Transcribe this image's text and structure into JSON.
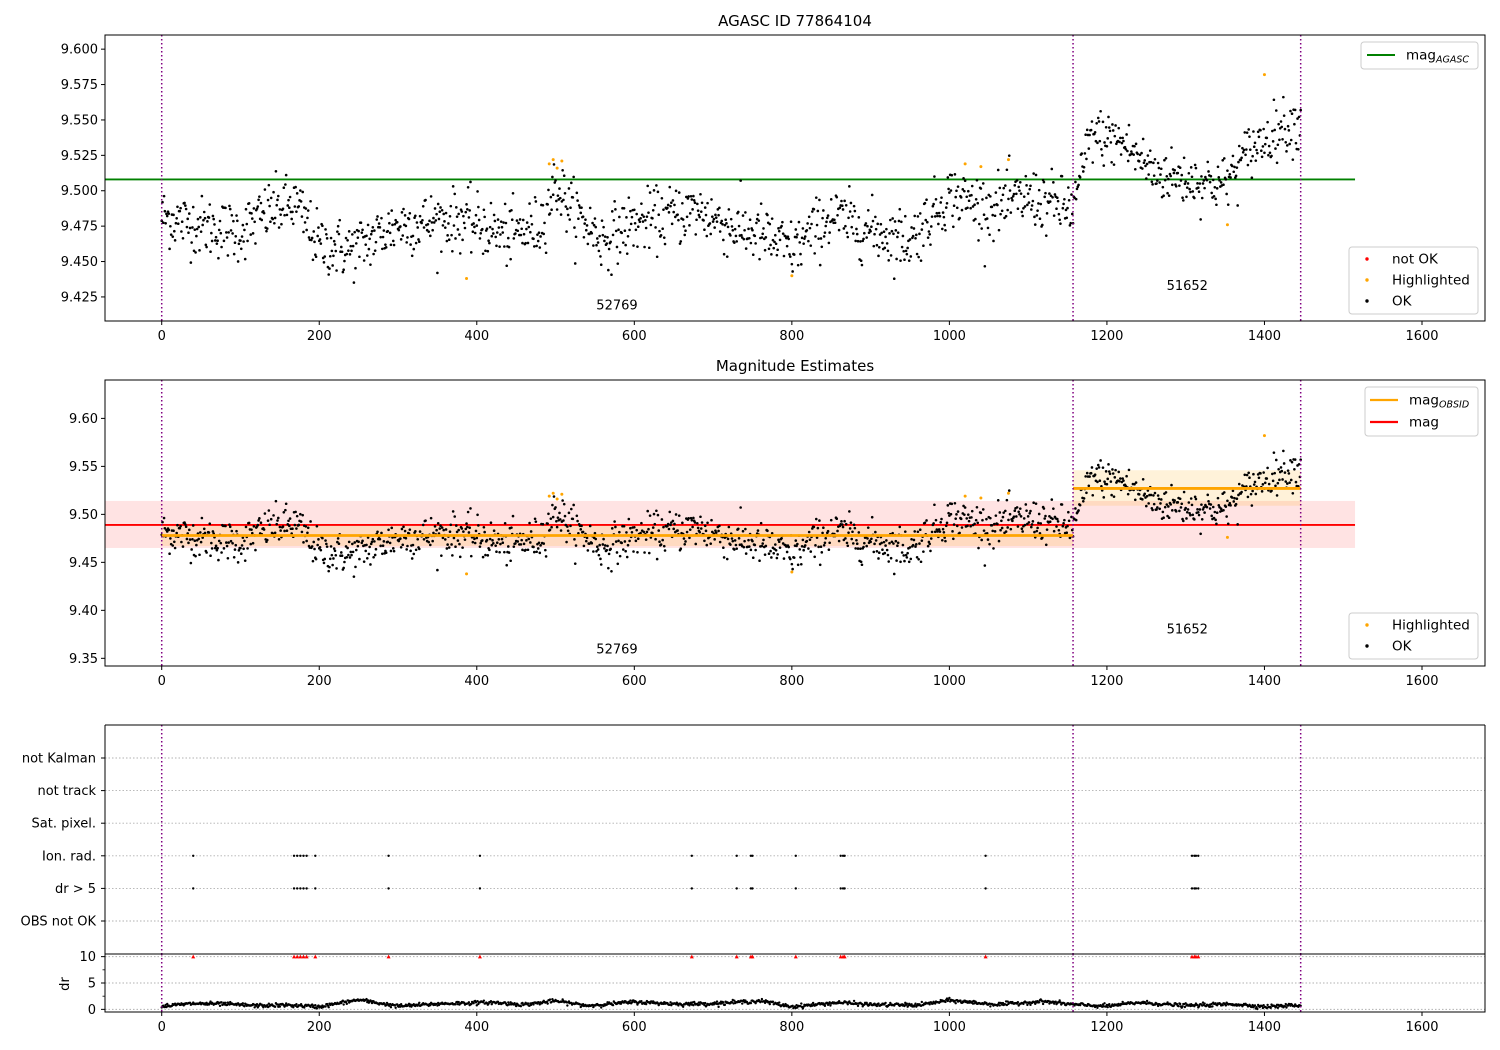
{
  "chart_data": [
    {
      "type": "scatter",
      "title": "AGASC ID 77864104",
      "xlabel": "",
      "ylabel": "",
      "xlim": [
        -72,
        1680
      ],
      "ylim": [
        9.408,
        9.61
      ],
      "xticks": [
        0,
        200,
        400,
        600,
        800,
        1000,
        1200,
        1400,
        1600
      ],
      "xtick_labels": [
        "0",
        "200",
        "400",
        "600",
        "800",
        "1000",
        "1200",
        "1400",
        "1600"
      ],
      "yticks": [
        9.425,
        9.45,
        9.475,
        9.5,
        9.525,
        9.55,
        9.575,
        9.6
      ],
      "ytick_labels": [
        "9.425",
        "9.450",
        "9.475",
        "9.500",
        "9.525",
        "9.550",
        "9.575",
        "9.600"
      ],
      "vlines": [
        0,
        1157,
        1446
      ],
      "obsid_labels": [
        {
          "x": 578,
          "y": 9.416,
          "text": "52769"
        },
        {
          "x": 1302,
          "y": 9.43,
          "text": "51652"
        }
      ],
      "reference_line": {
        "name": "mag",
        "subscript": "AGASC",
        "value": 9.508,
        "x": [
          -72,
          1515
        ],
        "color": "#008000"
      },
      "legend_upper": {
        "position": "upper right",
        "entries": [
          {
            "name": "mag",
            "subscript": "AGASC",
            "kind": "line",
            "color": "#008000"
          }
        ]
      },
      "legend_lower": {
        "position": "lower right",
        "entries": [
          {
            "name": "not OK",
            "kind": "marker",
            "color": "#ff0000"
          },
          {
            "name": "Highlighted",
            "kind": "marker",
            "color": "#ffa500"
          },
          {
            "name": "OK",
            "kind": "marker",
            "color": "#000000"
          }
        ]
      },
      "segments": [
        {
          "x": [
            0,
            1157
          ],
          "mean": 9.478,
          "std": 0.013,
          "color": "#000000"
        },
        {
          "x": [
            1157,
            1446
          ],
          "mean": 9.528,
          "std": 0.016,
          "color": "#000000"
        }
      ],
      "trend": {
        "x": [
          0,
          50,
          100,
          140,
          170,
          200,
          240,
          300,
          380,
          440,
          480,
          500,
          520,
          560,
          600,
          680,
          720,
          760,
          800,
          850,
          900,
          950,
          970,
          1000,
          1050,
          1100,
          1157,
          1180,
          1220,
          1260,
          1300,
          1350,
          1380,
          1420,
          1446
        ],
        "y": [
          9.482,
          9.475,
          9.471,
          9.487,
          9.49,
          9.462,
          9.458,
          9.476,
          9.48,
          9.468,
          9.475,
          9.504,
          9.487,
          9.465,
          9.477,
          9.486,
          9.475,
          9.469,
          9.458,
          9.482,
          9.472,
          9.465,
          9.478,
          9.497,
          9.488,
          9.495,
          9.487,
          9.54,
          9.534,
          9.513,
          9.508,
          9.505,
          9.528,
          9.545,
          9.548
        ]
      },
      "highlighted_points": {
        "x": [
          387,
          492,
          497,
          502,
          508,
          800,
          1020,
          1040,
          1075,
          1353,
          1400
        ],
        "y": [
          9.438,
          9.519,
          9.522,
          9.516,
          9.521,
          9.44,
          9.519,
          9.517,
          9.522,
          9.476,
          9.582
        ]
      }
    },
    {
      "type": "scatter",
      "title": "Magnitude Estimates",
      "xlabel": "",
      "ylabel": "",
      "xlim": [
        -72,
        1680
      ],
      "ylim": [
        9.342,
        9.64
      ],
      "xticks": [
        0,
        200,
        400,
        600,
        800,
        1000,
        1200,
        1400,
        1600
      ],
      "xtick_labels": [
        "0",
        "200",
        "400",
        "600",
        "800",
        "1000",
        "1200",
        "1400",
        "1600"
      ],
      "yticks": [
        9.35,
        9.4,
        9.45,
        9.5,
        9.55,
        9.6
      ],
      "ytick_labels": [
        "9.35",
        "9.40",
        "9.45",
        "9.50",
        "9.55",
        "9.60"
      ],
      "vlines": [
        0,
        1157,
        1446
      ],
      "obsid_labels": [
        {
          "x": 578,
          "y": 9.355,
          "text": "52769"
        },
        {
          "x": 1302,
          "y": 9.376,
          "text": "51652"
        }
      ],
      "mag_line": {
        "name": "mag",
        "value": 9.489,
        "band": [
          9.465,
          9.514
        ],
        "x": [
          -72,
          1515
        ],
        "color": "#ff0000"
      },
      "obsid_lines": [
        {
          "x": [
            0,
            1157
          ],
          "value": 9.478,
          "band": [
            9.467,
            9.489
          ]
        },
        {
          "x": [
            1157,
            1446
          ],
          "value": 9.527,
          "band": [
            9.509,
            9.546
          ]
        }
      ],
      "legend_upper": {
        "position": "upper right",
        "entries": [
          {
            "name": "mag",
            "subscript": "OBSID",
            "kind": "line",
            "color": "#ffa500"
          },
          {
            "name": "mag",
            "kind": "line",
            "color": "#ff0000"
          }
        ]
      },
      "legend_lower": {
        "position": "lower right",
        "entries": [
          {
            "name": "Highlighted",
            "kind": "marker",
            "color": "#ffa500"
          },
          {
            "name": "OK",
            "kind": "marker",
            "color": "#000000"
          }
        ]
      }
    },
    {
      "type": "scatter",
      "title": "",
      "xlabel": "",
      "ylabel": "",
      "xlim": [
        -72,
        1680
      ],
      "categories": [
        "OBS not OK",
        "dr > 5",
        "Ion. rad.",
        "Sat. pixel.",
        "not track",
        "not Kalman"
      ],
      "vlines": [
        0,
        1157,
        1446
      ],
      "flag_x": [
        40,
        168,
        172,
        176,
        180,
        184,
        195,
        288,
        404,
        673,
        730,
        748,
        750,
        805,
        862,
        865,
        867,
        1046,
        1308,
        1311,
        1313,
        1316
      ],
      "flags": {
        "dr > 5": true,
        "Ion. rad.": true
      }
    },
    {
      "type": "scatter",
      "title": "",
      "xlabel": "",
      "ylabel": "dr",
      "xlim": [
        -72,
        1680
      ],
      "ylim": [
        -0.5,
        10.5
      ],
      "yticks": [
        0,
        5,
        10
      ],
      "ytick_labels": [
        "0",
        "5",
        "10"
      ],
      "xticks": [
        0,
        200,
        400,
        600,
        800,
        1000,
        1200,
        1400,
        1600
      ],
      "xtick_labels": [
        "0",
        "200",
        "400",
        "600",
        "800",
        "1000",
        "1200",
        "1400",
        "1600"
      ],
      "vlines": [
        0,
        1157,
        1446
      ],
      "clipped_marker": {
        "y": 10,
        "color": "#ff0000",
        "x": [
          40,
          168,
          172,
          176,
          180,
          184,
          195,
          288,
          404,
          673,
          730,
          748,
          750,
          805,
          862,
          865,
          867,
          1046,
          1308,
          1311,
          1313,
          1316
        ]
      },
      "trend": {
        "x": [
          0,
          40,
          80,
          120,
          160,
          200,
          250,
          300,
          360,
          420,
          460,
          500,
          540,
          600,
          660,
          700,
          760,
          800,
          860,
          900,
          960,
          1000,
          1060,
          1120,
          1157,
          1200,
          1240,
          1300,
          1360,
          1400,
          1446
        ],
        "y": [
          0.6,
          1.1,
          1.0,
          0.7,
          0.8,
          0.5,
          1.8,
          0.6,
          1.1,
          1.3,
          0.9,
          1.6,
          0.7,
          1.4,
          1.0,
          1.1,
          1.6,
          0.5,
          1.3,
          0.9,
          0.8,
          1.7,
          0.9,
          1.5,
          0.9,
          0.6,
          1.3,
          0.7,
          1.0,
          0.5,
          0.8
        ]
      }
    }
  ]
}
